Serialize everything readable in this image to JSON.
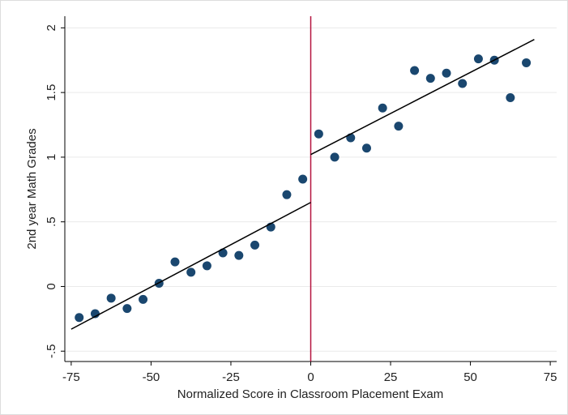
{
  "chart_data": {
    "type": "scatter",
    "x_label": "Normalized Score in Classroom Placement Exam",
    "y_label": "2nd year Math Grades",
    "x": [
      -72.5,
      -67.5,
      -62.5,
      -57.5,
      -52.5,
      -47.5,
      -42.5,
      -37.5,
      -32.5,
      -27.5,
      -22.5,
      -17.5,
      -12.5,
      -7.5,
      -2.5,
      2.5,
      7.5,
      12.5,
      17.5,
      22.5,
      27.5,
      32.5,
      37.5,
      42.5,
      47.5,
      52.5,
      57.5,
      62.5,
      67.5
    ],
    "values": [
      -0.24,
      -0.21,
      -0.09,
      -0.17,
      -0.1,
      0.025,
      0.19,
      0.11,
      0.16,
      0.26,
      0.24,
      0.32,
      0.46,
      0.71,
      0.83,
      1.18,
      1.0,
      1.15,
      1.07,
      1.38,
      1.24,
      1.67,
      1.61,
      1.65,
      1.57,
      1.76,
      1.75,
      1.46,
      1.73
    ],
    "color": "#1a476f",
    "fit_lines": [
      {
        "x": [
          -75,
          0
        ],
        "values": [
          -0.33,
          0.65
        ]
      },
      {
        "x": [
          0,
          70
        ],
        "values": [
          1.02,
          1.91
        ]
      }
    ],
    "fit_color": "#000000",
    "cutoff": 0,
    "cutoff_color": "#b5123e",
    "xlim": [
      -77,
      77
    ],
    "xticks": [
      -75,
      -50,
      -25,
      0,
      25,
      50,
      75
    ],
    "ylim": [
      -0.58,
      2.09
    ],
    "yticks": [
      {
        "value": -0.5,
        "label": "-.5"
      },
      0,
      {
        "value": 0.5,
        "label": ".5"
      },
      1,
      1.5,
      2
    ],
    "grid": true
  }
}
